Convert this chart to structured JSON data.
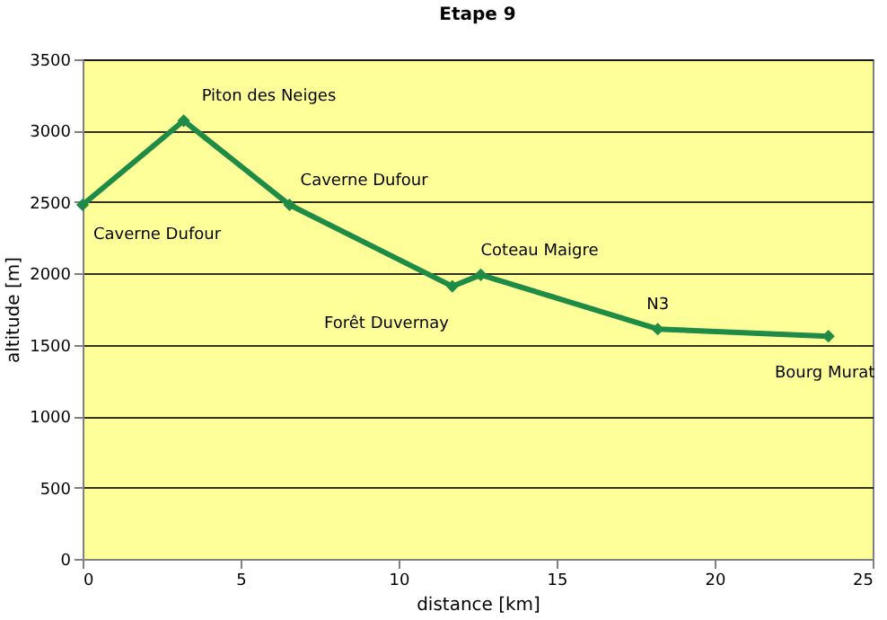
{
  "chart_data": {
    "type": "line",
    "title": "Etape 9",
    "xlabel": "distance [km]",
    "ylabel": "altitude [m]",
    "x": [
      0,
      3.2,
      6.55,
      11.7,
      12.6,
      18.2,
      23.6
    ],
    "series": [
      {
        "color": "#1e8c46",
        "values": [
          2480,
          3070,
          2480,
          1910,
          1990,
          1610,
          1560
        ]
      }
    ],
    "xlim": [
      0,
      25
    ],
    "xticks": [
      0,
      5,
      10,
      15,
      20,
      25
    ],
    "ylim": [
      0,
      3500
    ],
    "yticks": [
      0,
      500,
      1000,
      1500,
      2000,
      2500,
      3000,
      3500
    ],
    "grid": "y",
    "legend": false,
    "marker": "diamond",
    "line_style": "solid",
    "annotations": [
      {
        "text": "Caverne Dufour",
        "x": 0,
        "y": 2480
      },
      {
        "text": "Piton des Neiges",
        "x": 3.2,
        "y": 3070
      },
      {
        "text": "Caverne Dufour",
        "x": 6.55,
        "y": 2480
      },
      {
        "text": "Forêt Duvernay",
        "x": 11.7,
        "y": 1910
      },
      {
        "text": "Coteau Maigre",
        "x": 12.6,
        "y": 1990
      },
      {
        "text": "N3",
        "x": 18.2,
        "y": 1610
      },
      {
        "text": "Bourg Murat",
        "x": 23.6,
        "y": 1560
      }
    ]
  }
}
